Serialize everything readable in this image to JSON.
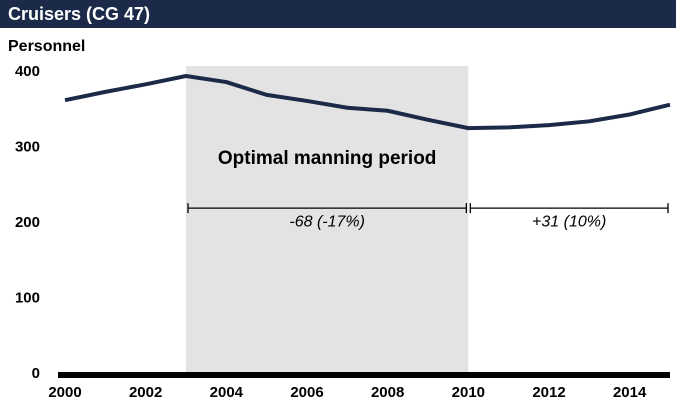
{
  "chart_data": {
    "type": "line",
    "title": "Cruisers (CG 47)",
    "y_label": "Personnel",
    "x": [
      2000,
      2001,
      2002,
      2003,
      2004,
      2005,
      2006,
      2007,
      2008,
      2009,
      2010,
      2011,
      2012,
      2013,
      2014,
      2015
    ],
    "series": [
      {
        "name": "Personnel",
        "color": "#1c2a4a",
        "values": [
          364,
          375,
          385,
          396,
          388,
          371,
          363,
          354,
          350,
          338,
          327,
          328,
          331,
          336,
          345,
          358
        ]
      }
    ],
    "xlim": [
      2000,
      2015
    ],
    "xticks": [
      2000,
      2002,
      2004,
      2006,
      2008,
      2010,
      2012,
      2014
    ],
    "ylim": [
      0,
      400
    ],
    "yticks": [
      0,
      100,
      200,
      300,
      400
    ],
    "grid": false,
    "highlight": {
      "x": [
        2003,
        2010
      ],
      "label": "Optimal manning period",
      "color": "#e3e3e3"
    },
    "annotations": [
      {
        "text": "-68 (-17%)",
        "x": [
          2003,
          2010
        ],
        "y": 221
      },
      {
        "text": "+31 (10%)",
        "x": [
          2010,
          2015
        ],
        "y": 221
      }
    ]
  }
}
